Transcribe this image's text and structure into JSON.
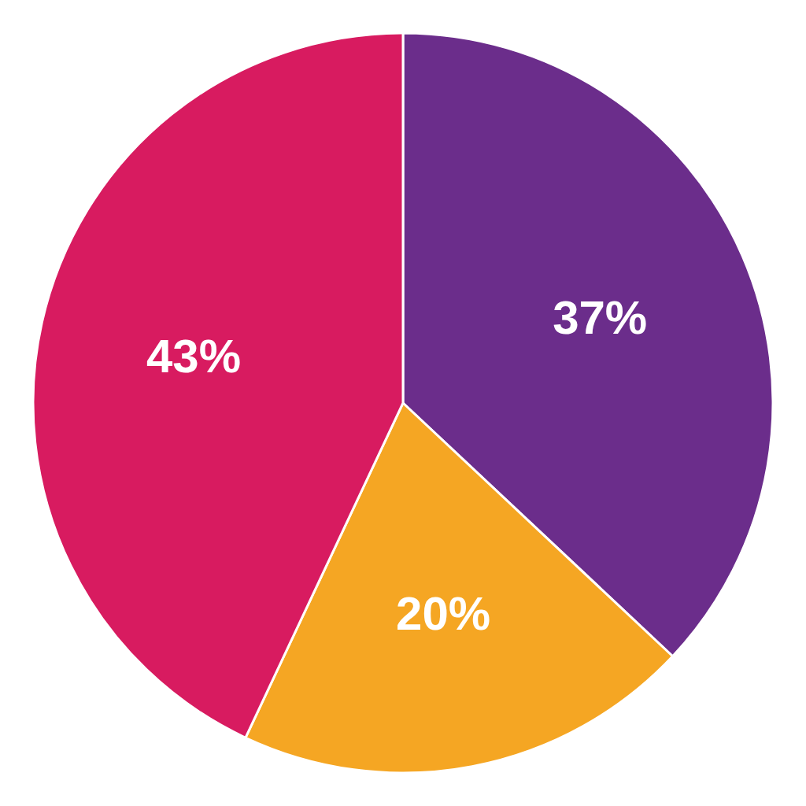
{
  "chart_data": {
    "type": "pie",
    "values": [
      37,
      20,
      43
    ],
    "value_labels": [
      "37%",
      "20%",
      "43%"
    ],
    "colors": [
      "#6B2D8B",
      "#F5A623",
      "#D81B60"
    ],
    "data_labels": true
  }
}
